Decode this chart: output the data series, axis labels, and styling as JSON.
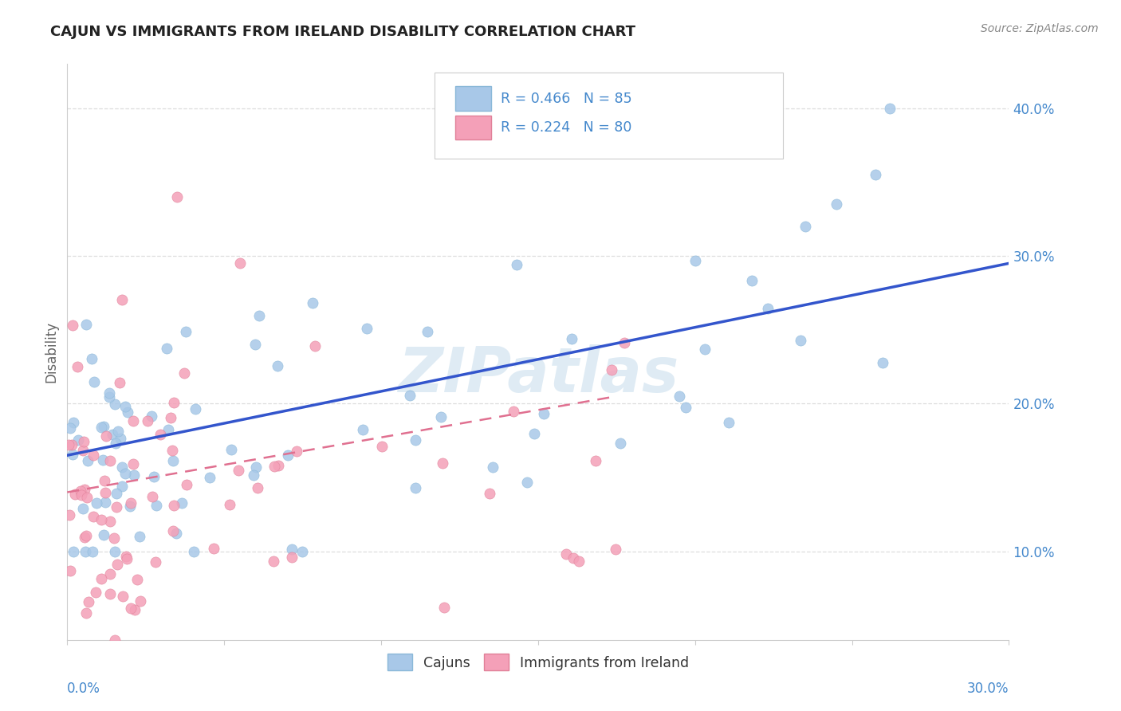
{
  "title": "CAJUN VS IMMIGRANTS FROM IRELAND DISABILITY CORRELATION CHART",
  "source_text": "Source: ZipAtlas.com",
  "ylabel": "Disability",
  "cajun_color": "#a8c8e8",
  "cajun_edge_color": "#8ab8d8",
  "ireland_color": "#f4a0b8",
  "ireland_edge_color": "#e08098",
  "cajun_line_color": "#3355cc",
  "ireland_line_color": "#e07090",
  "watermark": "ZIPatlas",
  "xlim": [
    0.0,
    0.3
  ],
  "ylim": [
    0.04,
    0.43
  ],
  "yticks": [
    0.1,
    0.2,
    0.3,
    0.4
  ],
  "ytick_labels": [
    "10.0%",
    "20.0%",
    "30.0%",
    "40.0%"
  ],
  "grid_color": "#dddddd",
  "spine_color": "#cccccc",
  "legend_r1": "R = 0.466",
  "legend_n1": "N = 85",
  "legend_r2": "R = 0.224",
  "legend_n2": "N = 80",
  "title_fontsize": 13,
  "tick_label_color": "#4488cc",
  "ylabel_color": "#666666"
}
